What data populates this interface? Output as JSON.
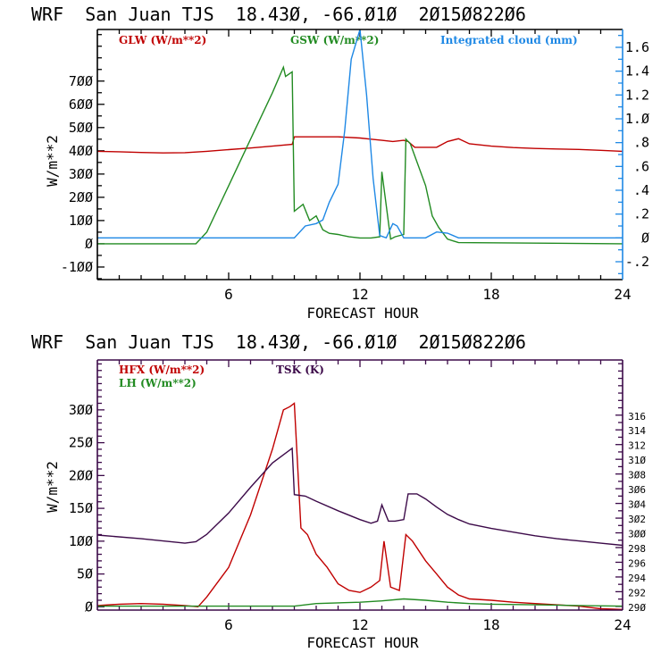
{
  "chart_data": [
    {
      "type": "line",
      "title": "WRF  San Juan TJS  18.430, -66.010  2015082206",
      "xlabel": "FORECAST HOUR",
      "ylabel": "W/m**2",
      "xlim": [
        0,
        24
      ],
      "ylim": [
        -154,
        922
      ],
      "y2lim": [
        -0.35,
        1.75
      ],
      "xticks": [
        6,
        12,
        18,
        24
      ],
      "yticks": [
        -100,
        0,
        100,
        200,
        300,
        400,
        500,
        600,
        700
      ],
      "yticklabels": [
        "-100",
        "0",
        "100",
        "200",
        "300",
        "400",
        "500",
        "600",
        "700"
      ],
      "y2ticks": [
        -0.2,
        0,
        0.2,
        0.4,
        0.6,
        0.8,
        1.0,
        1.2,
        1.4,
        1.6
      ],
      "y2ticklabels": [
        "-.2",
        "0",
        ".2",
        ".4",
        ".6",
        ".8",
        "1.0",
        "1.2",
        "1.4",
        "1.6"
      ],
      "legend": "top",
      "axis_color": "#000000",
      "series": [
        {
          "name": "GLW (W/m**2)",
          "axis": "left",
          "color": "#c00000",
          "x": [
            0,
            1,
            2,
            3,
            4,
            5,
            6,
            7,
            8,
            8.9,
            9,
            10,
            11,
            12,
            12.5,
            13,
            13.5,
            14,
            14.2,
            14.5,
            15.5,
            16,
            16.5,
            17,
            18,
            19,
            20,
            21,
            22,
            23,
            24
          ],
          "y": [
            398,
            396,
            393,
            391,
            392,
            398,
            405,
            412,
            420,
            428,
            460,
            460,
            460,
            455,
            450,
            445,
            440,
            445,
            440,
            415,
            415,
            440,
            452,
            430,
            420,
            414,
            410,
            408,
            406,
            402,
            398
          ]
        },
        {
          "name": "GSW (W/m**2)",
          "axis": "left",
          "color": "#228b22",
          "x": [
            0,
            4.5,
            5,
            6,
            7,
            8,
            8.5,
            8.6,
            8.9,
            9,
            9.4,
            9.7,
            10,
            10.3,
            10.6,
            11,
            11.5,
            12,
            12.5,
            12.9,
            13,
            13.4,
            13.6,
            14,
            14.1,
            14.3,
            15,
            15.3,
            15.6,
            16,
            16.5,
            24
          ],
          "y": [
            0,
            0,
            50,
            250,
            450,
            650,
            760,
            720,
            740,
            140,
            170,
            100,
            120,
            60,
            45,
            40,
            30,
            25,
            25,
            30,
            310,
            20,
            30,
            40,
            450,
            430,
            250,
            120,
            70,
            20,
            5,
            0
          ]
        },
        {
          "name": "Integrated cloud (mm)",
          "axis": "right",
          "color": "#1e88e5",
          "x": [
            0,
            9,
            9.5,
            10,
            10.3,
            10.6,
            11,
            11.3,
            11.6,
            12,
            12.3,
            12.6,
            12.9,
            13.2,
            13.5,
            13.7,
            14,
            15,
            15.5,
            16,
            16.5,
            24
          ],
          "y": [
            0,
            0,
            0.1,
            0.12,
            0.15,
            0.3,
            0.45,
            0.9,
            1.5,
            1.75,
            1.2,
            0.5,
            0.02,
            0.0,
            0.12,
            0.1,
            0.0,
            0.0,
            0.05,
            0.04,
            0.0,
            0.0
          ]
        }
      ]
    },
    {
      "type": "line",
      "title": "WRF  San Juan TJS  18.430, -66.010  2015082206",
      "xlabel": "FORECAST HOUR",
      "ylabel": "W/m**2",
      "xlim": [
        0,
        24
      ],
      "ylim": [
        -5,
        376
      ],
      "y2lim": [
        289.5,
        323.5
      ],
      "xticks": [
        6,
        12,
        18,
        24
      ],
      "yticks": [
        0,
        50,
        100,
        150,
        200,
        250,
        300
      ],
      "yticklabels": [
        "0",
        "50",
        "100",
        "150",
        "200",
        "250",
        "300"
      ],
      "y2ticks": [
        290,
        292,
        294,
        296,
        298,
        300,
        302,
        304,
        306,
        308,
        310,
        312,
        314,
        316
      ],
      "y2ticklabels": [
        "290",
        "292",
        "294",
        "296",
        "298",
        "300",
        "302",
        "304",
        "306",
        "308",
        "310",
        "312",
        "314",
        "316"
      ],
      "legend": "top",
      "axis_color": "#3c0a49",
      "series": [
        {
          "name": "HFX (W/m**2)",
          "axis": "left",
          "color": "#c00000",
          "x": [
            0,
            1,
            2,
            3,
            4,
            4.6,
            5,
            6,
            7,
            8,
            8.5,
            8.8,
            9,
            9.3,
            9.6,
            10,
            10.5,
            11,
            11.5,
            12,
            12.5,
            12.9,
            13.1,
            13.4,
            13.8,
            14.1,
            14.4,
            15,
            15.5,
            16,
            16.5,
            17,
            18,
            19,
            20,
            21,
            22,
            23,
            24
          ],
          "y": [
            2,
            4,
            5,
            4,
            2,
            0,
            15,
            60,
            140,
            240,
            300,
            305,
            310,
            120,
            110,
            80,
            60,
            35,
            25,
            22,
            30,
            40,
            100,
            30,
            25,
            110,
            100,
            70,
            50,
            30,
            18,
            12,
            10,
            7,
            5,
            3,
            1,
            -3,
            -4
          ]
        },
        {
          "name": "LH (W/m**2)",
          "axis": "left",
          "color": "#228b22",
          "x": [
            0,
            9,
            10,
            11,
            12,
            13,
            14,
            15,
            16,
            17,
            18,
            20,
            22,
            24
          ],
          "y": [
            1,
            1,
            5,
            6,
            7,
            9,
            12,
            10,
            7,
            5,
            4,
            3,
            2,
            1
          ]
        },
        {
          "name": "TSK (K)",
          "axis": "right",
          "color": "#3c0a49",
          "x": [
            0,
            2,
            4,
            4.5,
            5,
            6,
            7,
            8,
            8.9,
            9,
            9.5,
            10,
            11,
            12,
            12.5,
            12.8,
            13,
            13.3,
            13.6,
            14,
            14.2,
            14.6,
            15,
            15.5,
            16,
            16.5,
            17,
            18,
            19,
            20,
            21,
            22,
            23,
            24
          ],
          "y": [
            299.7,
            299.2,
            298.6,
            298.8,
            299.8,
            302.7,
            306.2,
            309.5,
            311.5,
            305.2,
            305.0,
            304.3,
            303.0,
            301.8,
            301.3,
            301.6,
            303.8,
            301.6,
            301.6,
            301.8,
            305.3,
            305.3,
            304.6,
            303.5,
            302.5,
            301.8,
            301.2,
            300.6,
            300.1,
            299.6,
            299.2,
            298.9,
            298.6,
            298.3
          ]
        }
      ]
    }
  ]
}
